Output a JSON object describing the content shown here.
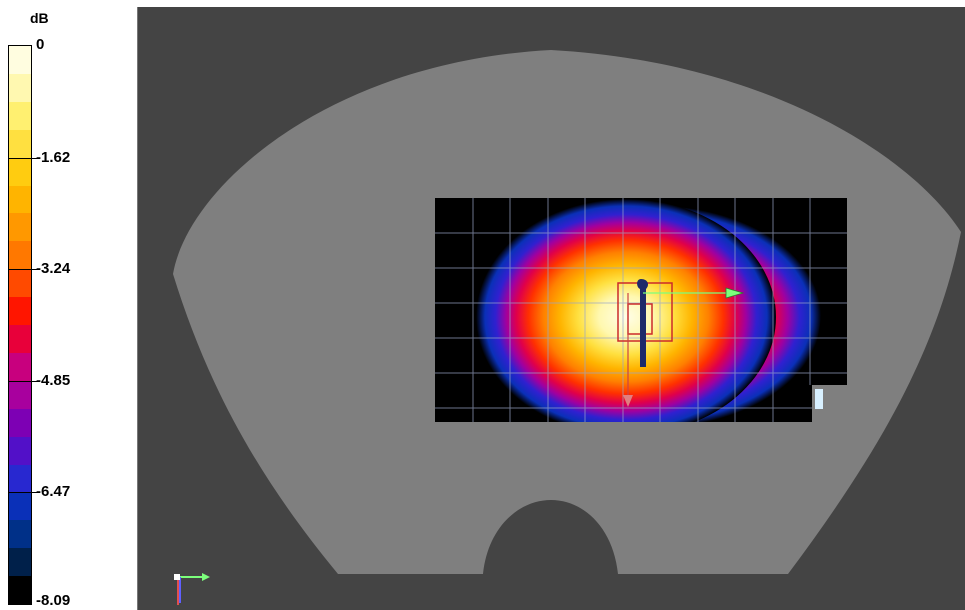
{
  "legend": {
    "unit": "dB",
    "ticks": [
      "0",
      "-1.62",
      "-3.24",
      "-4.85",
      "-6.47",
      "-8.09"
    ],
    "colors": [
      "#fffde0",
      "#fff8b0",
      "#fff070",
      "#ffe040",
      "#ffcc10",
      "#ffb400",
      "#ff9800",
      "#ff7800",
      "#ff4a00",
      "#ff1500",
      "#e8003a",
      "#c8007e",
      "#a8009e",
      "#7d00b4",
      "#5210c8",
      "#2828d0",
      "#0a30b8",
      "#003088",
      "#00204a",
      "#000000"
    ]
  },
  "viewport": {
    "background_color": "#444444",
    "phantom_color": "#7f7f7f",
    "axis_colors": {
      "x": "#7cff7c",
      "y": "#e05050",
      "z": "#6060ff"
    }
  }
}
